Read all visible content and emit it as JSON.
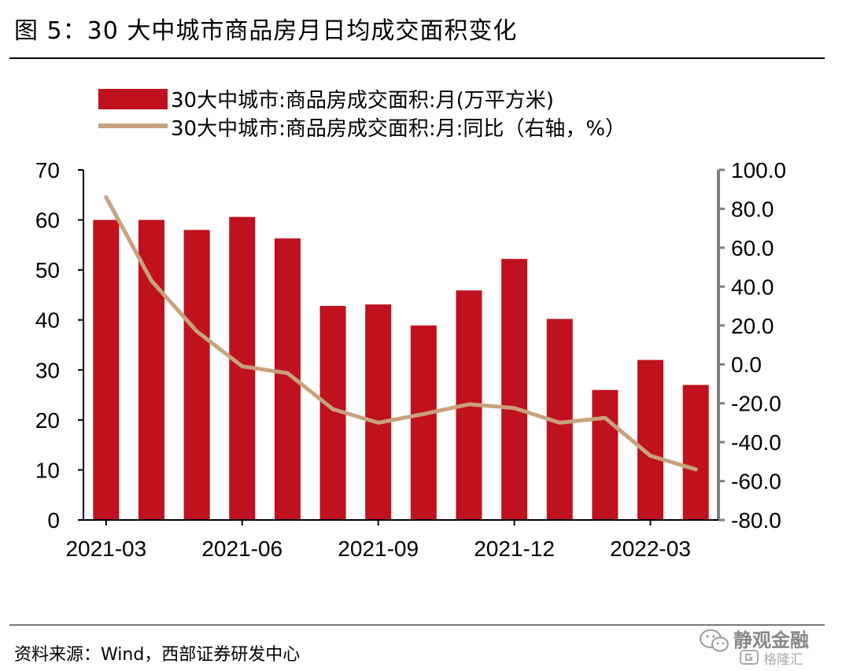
{
  "title": "图 5：30 大中城市商品房月日均成交面积变化",
  "source": "资料来源：Wind，西部证券研发中心",
  "watermark": {
    "brand": "静观金融",
    "sub": "格隆汇"
  },
  "colors": {
    "bar": "#C0111F",
    "line": "#C8A27D",
    "right_axis": "#808080"
  },
  "chart_data": {
    "type": "bar",
    "categories": [
      "2021-03",
      "2021-04",
      "2021-05",
      "2021-06",
      "2021-07",
      "2021-08",
      "2021-09",
      "2021-10",
      "2021-11",
      "2021-12",
      "2022-01",
      "2022-02",
      "2022-03",
      "2022-04"
    ],
    "x_tick_labels": [
      "2021-03",
      "2021-06",
      "2021-09",
      "2021-12",
      "2022-03"
    ],
    "series": [
      {
        "name": "30大中城市:商品房成交面积:月(万平方米)",
        "type": "bar",
        "axis": "left",
        "values": [
          60.0,
          60.0,
          58.0,
          60.6,
          56.3,
          42.8,
          43.1,
          38.9,
          45.9,
          52.2,
          40.2,
          26.0,
          32.0,
          27.0
        ]
      },
      {
        "name": "30大中城市:商品房成交面积:月:同比（右轴，%）",
        "type": "line",
        "axis": "right",
        "values": [
          86.0,
          43.0,
          17.0,
          -1.0,
          -4.5,
          -23.0,
          -30.0,
          -25.5,
          -20.5,
          -22.5,
          -30.0,
          -27.5,
          -47.0,
          -54.0
        ]
      }
    ],
    "y_left": {
      "min": 0,
      "max": 70,
      "ticks": [
        "0",
        "10",
        "20",
        "30",
        "40",
        "50",
        "60",
        "70"
      ]
    },
    "y_right": {
      "min": -80,
      "max": 100,
      "ticks": [
        "-80.0",
        "-60.0",
        "-40.0",
        "-20.0",
        "0.0",
        "20.0",
        "40.0",
        "60.0",
        "80.0",
        "100.0"
      ]
    },
    "legend_position": "top"
  }
}
